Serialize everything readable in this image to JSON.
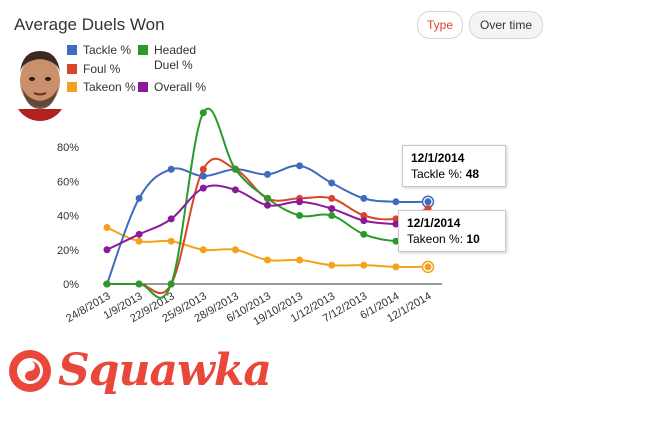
{
  "header": {
    "title": "Average Duels Won"
  },
  "buttons": {
    "type_label": "Type",
    "over_time_label": "Over time"
  },
  "colors": {
    "tackle": "#3f6bbf",
    "foul": "#d9452b",
    "takeon": "#f4a11c",
    "headed": "#2a9a2a",
    "overall": "#8a1a9a",
    "accent": "#e8473a"
  },
  "legend": [
    {
      "label": "Tackle %",
      "color": "#3f6bbf"
    },
    {
      "label": "Headed Duel %",
      "color": "#2a9a2a"
    },
    {
      "label": "Foul %",
      "color": "#d9452b"
    },
    {
      "label": "Takeon %",
      "color": "#f4a11c"
    },
    {
      "label": "Overall %",
      "color": "#8a1a9a"
    }
  ],
  "tooltips": [
    {
      "date": "12/1/2014",
      "label": "Tackle %:",
      "value": "48"
    },
    {
      "date": "12/1/2014",
      "label": "Takeon %:",
      "value": "10"
    }
  ],
  "brand": {
    "name": "Squawka"
  },
  "chart_data": {
    "type": "line",
    "title": "Average Duels Won",
    "categories": [
      "24/8/2013",
      "1/9/2013",
      "22/9/2013",
      "25/9/2013",
      "28/9/2013",
      "6/10/2013",
      "19/10/2013",
      "1/12/2013",
      "7/12/2013",
      "6/1/2014",
      "12/1/2014"
    ],
    "yticks": [
      "0%",
      "20%",
      "40%",
      "60%",
      "80%"
    ],
    "ylim": [
      0,
      80
    ],
    "series": [
      {
        "name": "Tackle %",
        "color": "#3f6bbf",
        "values": [
          0,
          50,
          67,
          63,
          67,
          64,
          69,
          59,
          50,
          48,
          48
        ]
      },
      {
        "name": "Foul %",
        "color": "#d9452b",
        "values": [
          0,
          0,
          0,
          67,
          67,
          50,
          50,
          50,
          40,
          38,
          44
        ]
      },
      {
        "name": "Takeon %",
        "color": "#f4a11c",
        "values": [
          33,
          25,
          25,
          20,
          20,
          14,
          14,
          11,
          11,
          10,
          10
        ]
      },
      {
        "name": "Headed Duel %",
        "color": "#2a9a2a",
        "values": [
          0,
          0,
          0,
          100,
          67,
          50,
          40,
          40,
          29,
          25,
          25
        ]
      },
      {
        "name": "Overall %",
        "color": "#8a1a9a",
        "values": [
          20,
          29,
          38,
          56,
          55,
          46,
          48,
          44,
          37,
          35,
          35
        ]
      }
    ]
  }
}
